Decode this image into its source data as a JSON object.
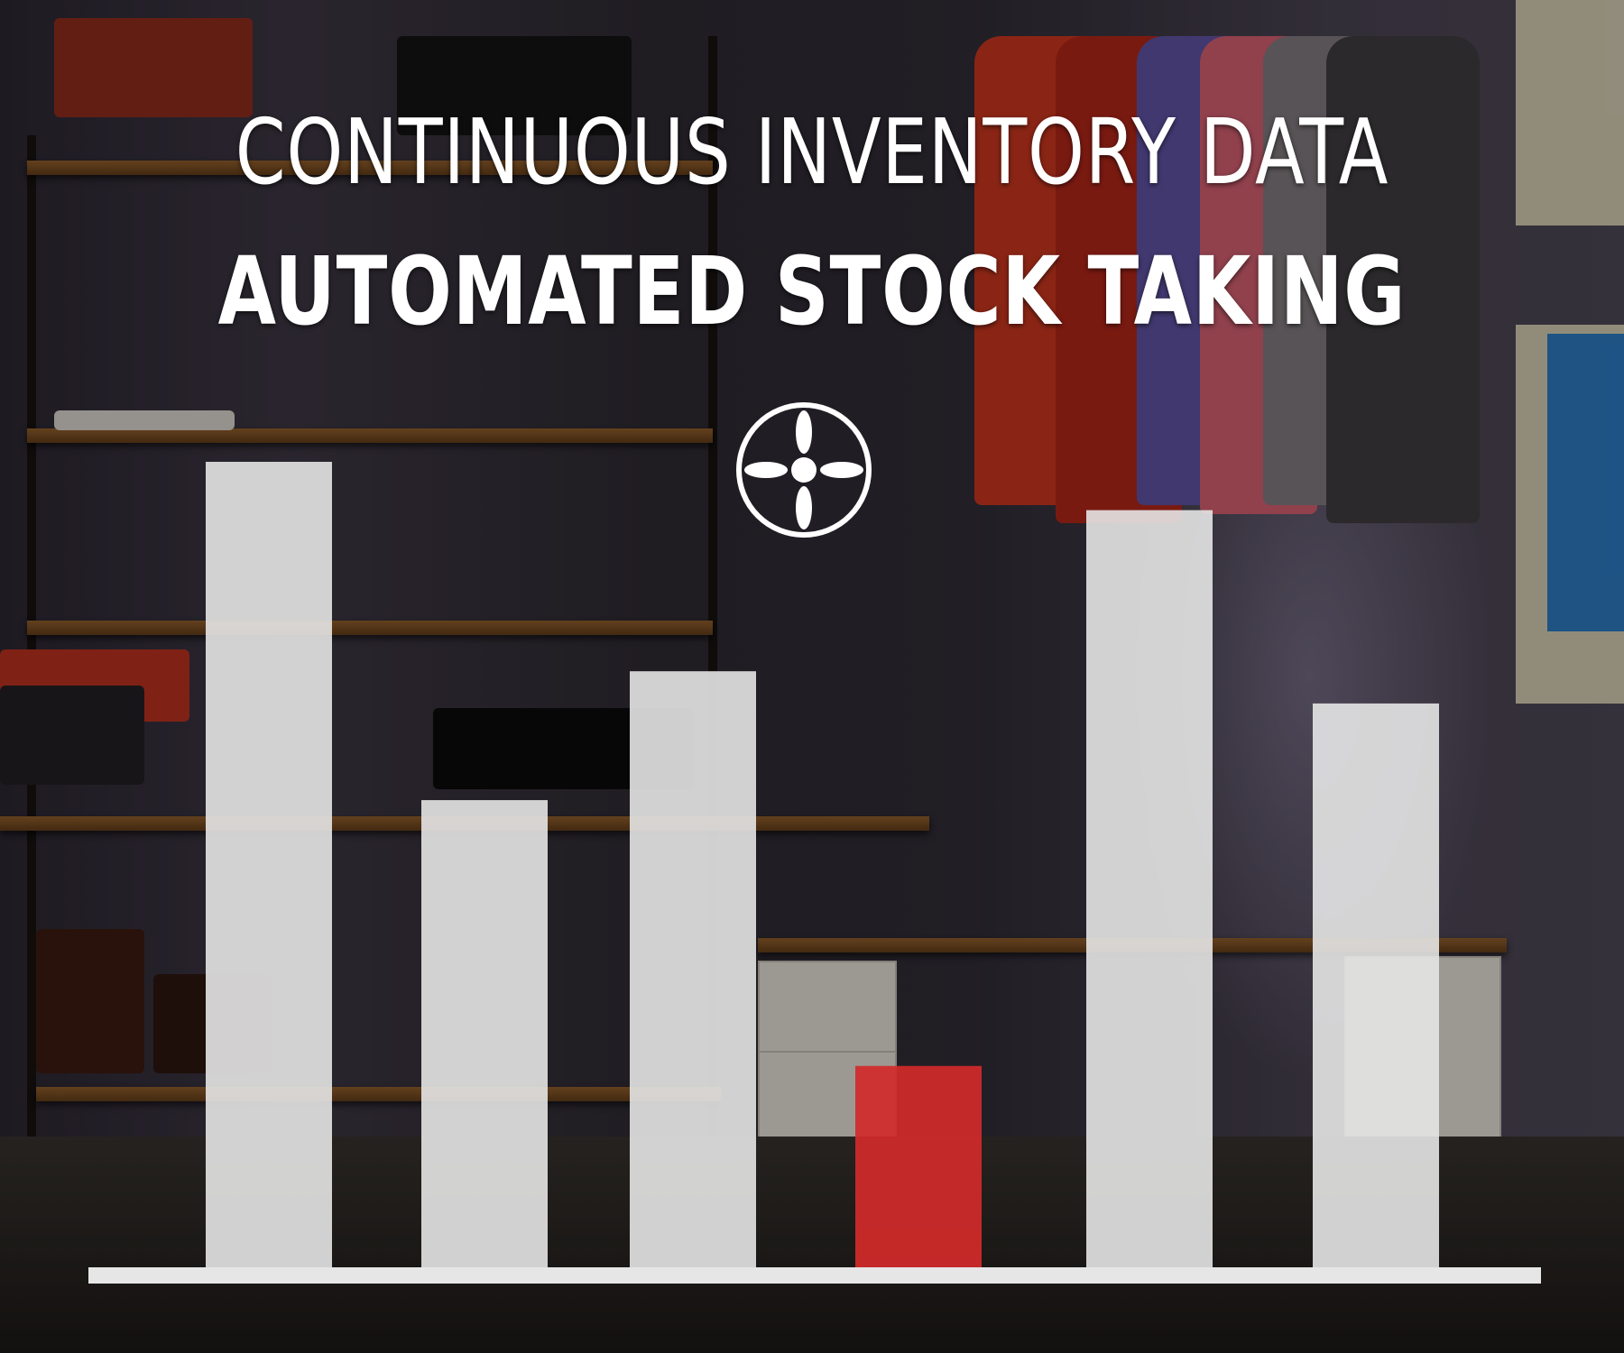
{
  "headline": {
    "line1": "CONTINUOUS INVENTORY DATA",
    "line2": "AUTOMATED STOCK TAKING"
  },
  "logo": {
    "icon": "propeller-cross-icon",
    "color": "#ffffff"
  },
  "colors": {
    "bar": "#e6e6e6",
    "highlight": "#d32a2a",
    "axis": "#e6e6e6"
  },
  "chart_data": {
    "type": "bar",
    "categories": [
      "",
      "",
      "",
      "",
      "",
      ""
    ],
    "values": [
      100,
      58,
      74,
      25,
      94,
      70
    ],
    "highlight_index": 3,
    "title": "",
    "xlabel": "",
    "ylabel": "",
    "ylim": [
      0,
      100
    ],
    "grid": false,
    "legend": "none"
  }
}
